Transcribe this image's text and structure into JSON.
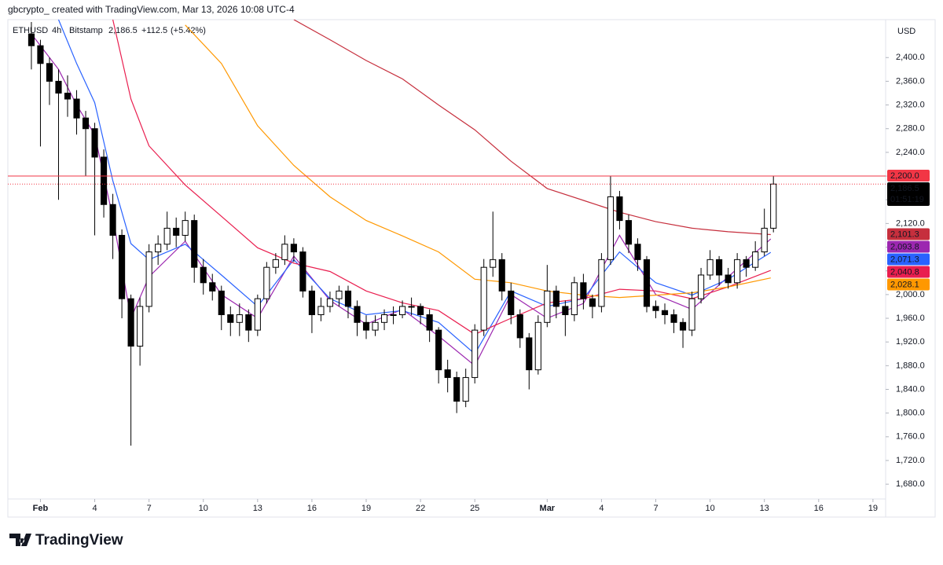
{
  "chart_data": {
    "type": "candlestick",
    "title": "gbcrypto_ created with TradingView.com, Mar 13, 2026 10:08 UTC-4",
    "symbol": "ETHUSD",
    "interval": "4h",
    "exchange": "Bitstamp",
    "last": "2,186.5",
    "change": "+112.5",
    "change_pct": "(+5.42%)",
    "currency": "USD",
    "brand": "TradingView",
    "xlim": [
      -1.8,
      46.7
    ],
    "ylim": [
      1655,
      2464
    ],
    "xticks": [
      {
        "value": 0,
        "label": "Feb"
      },
      {
        "value": 3,
        "label": "4"
      },
      {
        "value": 6,
        "label": "7"
      },
      {
        "value": 9,
        "label": "10"
      },
      {
        "value": 12,
        "label": "13"
      },
      {
        "value": 15,
        "label": "16"
      },
      {
        "value": 18,
        "label": "19"
      },
      {
        "value": 21,
        "label": "22"
      },
      {
        "value": 24,
        "label": "25"
      },
      {
        "value": 28,
        "label": "Mar"
      },
      {
        "value": 31,
        "label": "4"
      },
      {
        "value": 34,
        "label": "7"
      },
      {
        "value": 37,
        "label": "10"
      },
      {
        "value": 40,
        "label": "13"
      },
      {
        "value": 43,
        "label": "16"
      },
      {
        "value": 46,
        "label": "19"
      }
    ],
    "yticks": [
      {
        "value": 1680,
        "label": "1,680.0"
      },
      {
        "value": 1720,
        "label": "1,720.0"
      },
      {
        "value": 1760,
        "label": "1,760.0"
      },
      {
        "value": 1800,
        "label": "1,800.0"
      },
      {
        "value": 1840,
        "label": "1,840.0"
      },
      {
        "value": 1880,
        "label": "1,880.0"
      },
      {
        "value": 1920,
        "label": "1,920.0"
      },
      {
        "value": 1960,
        "label": "1,960.0"
      },
      {
        "value": 2000,
        "label": "2,000.0"
      },
      {
        "value": 2040,
        "label": "2,040.0"
      },
      {
        "value": 2080,
        "label": "2,080.0"
      },
      {
        "value": 2120,
        "label": "2,120.0"
      },
      {
        "value": 2160,
        "label": "2,160.0"
      },
      {
        "value": 2200,
        "label": "2,200.0"
      },
      {
        "value": 2240,
        "label": "2,240.0"
      },
      {
        "value": 2280,
        "label": "2,280.0"
      },
      {
        "value": 2320,
        "label": "2,320.0"
      },
      {
        "value": 2360,
        "label": "2,360.0"
      },
      {
        "value": 2400,
        "label": "2,400.0"
      }
    ],
    "up_color": "#ffffff",
    "down_color": "#000000",
    "x": [
      -0.5,
      0,
      0.5,
      1,
      1.5,
      2,
      2.5,
      3,
      3.5,
      4,
      4.5,
      5,
      5.5,
      6,
      6.5,
      7,
      7.5,
      8,
      8.5,
      9,
      9.5,
      10,
      10.5,
      11,
      11.5,
      12,
      12.5,
      13,
      13.5,
      14,
      14.5,
      15,
      15.5,
      16,
      16.5,
      17,
      17.5,
      18,
      18.5,
      19,
      19.5,
      20,
      20.5,
      21,
      21.5,
      22,
      22.5,
      23,
      23.5,
      24,
      24.5,
      25,
      25.5,
      26,
      26.5,
      27,
      27.5,
      28,
      28.5,
      29,
      29.5,
      30,
      30.5,
      31,
      31.5,
      32,
      32.5,
      33,
      33.5,
      34,
      34.5,
      35,
      35.5,
      36,
      36.5,
      37,
      37.5,
      38,
      38.5,
      39,
      39.5,
      40,
      40.5
    ],
    "open": [
      2440,
      2420,
      2390,
      2360,
      2340,
      2330,
      2298,
      2280,
      2232,
      2152,
      2100,
      1993,
      1913,
      1980,
      2072,
      2085,
      2112,
      2100,
      2125,
      2046,
      2020,
      2006,
      1966,
      1953,
      1966,
      1940,
      1993,
      2046,
      2059,
      2085,
      2072,
      2006,
      1966,
      1980,
      1993,
      2006,
      1980,
      1953,
      1940,
      1953,
      1966,
      1966,
      1980,
      1980,
      1966,
      1940,
      1873,
      1860,
      1820,
      1860,
      1940,
      2046,
      2059,
      2006,
      1966,
      1927,
      1873,
      1953,
      2006,
      1980,
      1966,
      2020,
      1993,
      1980,
      2059,
      2165,
      2125,
      2085,
      2059,
      1980,
      1973,
      1966,
      1953,
      1940,
      1993,
      2033,
      2059,
      2033,
      2020,
      2059,
      2046,
      2072,
      2112
    ],
    "high": [
      2460,
      2430,
      2400,
      2380,
      2370,
      2345,
      2310,
      2290,
      2245,
      2170,
      2110,
      2000,
      1995,
      2085,
      2100,
      2140,
      2130,
      2140,
      2135,
      2060,
      2035,
      2015,
      1980,
      1985,
      1975,
      2000,
      2055,
      2070,
      2100,
      2095,
      2080,
      2015,
      1995,
      2005,
      2015,
      2015,
      1990,
      1965,
      1965,
      1975,
      1980,
      1990,
      1995,
      1985,
      1975,
      1945,
      1890,
      1870,
      1875,
      1950,
      2060,
      2140,
      2070,
      2020,
      1975,
      1935,
      1965,
      2050,
      2015,
      1990,
      2030,
      2035,
      2000,
      2070,
      2200,
      2175,
      2135,
      2095,
      2065,
      1990,
      1985,
      1975,
      1960,
      2005,
      2045,
      2075,
      2065,
      2045,
      2070,
      2065,
      2090,
      2145,
      2200
    ],
    "low": [
      2380,
      2250,
      2320,
      2160,
      2300,
      2270,
      2200,
      2100,
      2130,
      2060,
      1960,
      1745,
      1880,
      1970,
      2050,
      2075,
      2080,
      2090,
      2020,
      2000,
      1990,
      1940,
      1930,
      1930,
      1920,
      1930,
      1985,
      2035,
      2050,
      2055,
      1995,
      1935,
      1955,
      1970,
      1980,
      1960,
      1930,
      1925,
      1930,
      1940,
      1950,
      1960,
      1965,
      1950,
      1920,
      1850,
      1835,
      1800,
      1810,
      1850,
      1930,
      2030,
      1990,
      1950,
      1910,
      1840,
      1865,
      1945,
      1960,
      1930,
      1955,
      1975,
      1960,
      1970,
      2050,
      2110,
      2070,
      2040,
      1970,
      1960,
      1950,
      1935,
      1910,
      1930,
      1985,
      2025,
      2015,
      2010,
      2010,
      2030,
      2040,
      2065,
      2105
    ],
    "close": [
      2420,
      2390,
      2360,
      2340,
      2330,
      2298,
      2280,
      2232,
      2152,
      2100,
      1993,
      1913,
      1980,
      2072,
      2085,
      2112,
      2100,
      2125,
      2046,
      2020,
      2006,
      1966,
      1953,
      1966,
      1940,
      1993,
      2046,
      2059,
      2085,
      2072,
      2006,
      1966,
      1980,
      1993,
      2006,
      1980,
      1953,
      1940,
      1953,
      1966,
      1966,
      1980,
      1980,
      1966,
      1940,
      1873,
      1860,
      1820,
      1860,
      1940,
      2046,
      2059,
      2006,
      1966,
      1927,
      1873,
      1953,
      2006,
      1980,
      1966,
      2020,
      1993,
      1980,
      2059,
      2165,
      2125,
      2085,
      2059,
      1980,
      1973,
      1966,
      1953,
      1940,
      1993,
      2033,
      2059,
      2033,
      2020,
      2059,
      2046,
      2072,
      2112,
      2186.5
    ],
    "ma_x": [
      -0.5,
      1,
      2,
      3,
      4,
      5,
      6,
      8,
      10,
      12,
      14,
      16,
      18,
      20,
      22,
      24,
      26,
      28,
      30,
      32,
      34,
      36,
      38,
      40.35
    ],
    "moving_averages": [
      {
        "color": "#c62f3d",
        "last_label": "2,101.3",
        "values": [
          null,
          null,
          null,
          null,
          null,
          null,
          null,
          null,
          null,
          null,
          2464,
          2430,
          2395,
          2364,
          2320,
          2278,
          2225,
          2179,
          2159,
          2139,
          2123,
          2112,
          2106,
          2101.3
        ]
      },
      {
        "color": "#9c27b0",
        "last_label": "2,093.8",
        "values": [
          2440,
          2380,
          2320,
          2270,
          2130,
          1960,
          2030,
          2090,
          2000,
          1960,
          2065,
          1990,
          1950,
          1975,
          1930,
          1880,
          2000,
          1960,
          1985,
          2100,
          2000,
          1975,
          2030,
          2093.8
        ]
      },
      {
        "color": "#2962ff",
        "last_label": "2,071.3",
        "values": [
          null,
          2464,
          2390,
          2324,
          2192,
          2086,
          2059,
          2085,
          2033,
          1980,
          2059,
          1993,
          1966,
          1973,
          1953,
          1900,
          2006,
          1980,
          1993,
          2072,
          2020,
          1999,
          2026,
          2071.3
        ]
      },
      {
        "color": "#e91e4f",
        "last_label": "2,040.8",
        "values": [
          null,
          null,
          null,
          null,
          2464,
          2330,
          2251,
          2185,
          2132,
          2079,
          2053,
          2039,
          2006,
          1986,
          1973,
          1933,
          1960,
          1986,
          1993,
          2009,
          2006,
          1993,
          2013,
          2040.8
        ]
      },
      {
        "color": "#ff9800",
        "last_label": "2,028.1",
        "values": [
          null,
          null,
          null,
          null,
          null,
          null,
          null,
          2455,
          2390,
          2285,
          2218,
          2165,
          2125,
          2099,
          2072,
          2026,
          2020,
          2006,
          1999,
          1995,
          1999,
          2003,
          2013,
          2028.1
        ]
      }
    ],
    "level": {
      "value": 2200,
      "label": "2,200.0",
      "color": "#f23645"
    },
    "price_line": {
      "value": 2186.5,
      "label": "2,186.5",
      "countdown": "01:51:19"
    }
  }
}
